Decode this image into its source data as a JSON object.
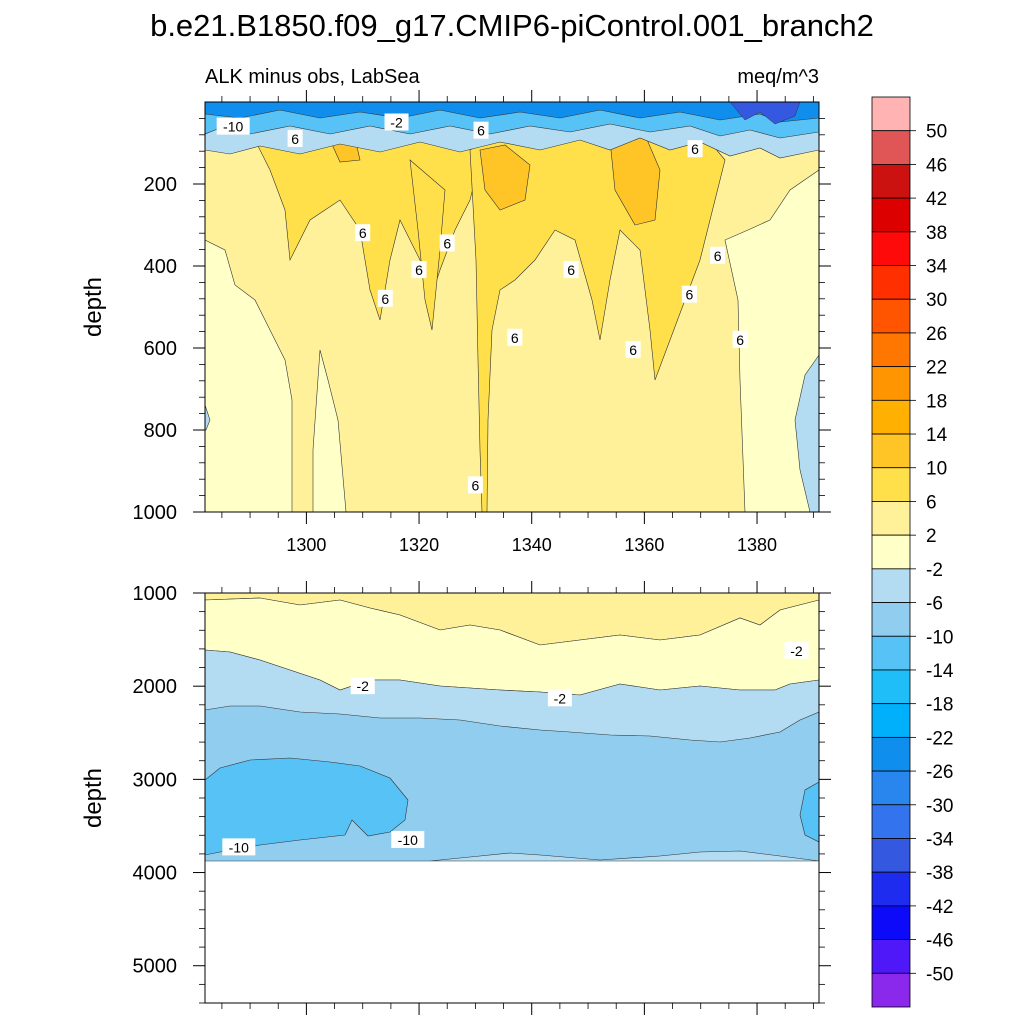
{
  "chart_data": {
    "type": "heatmap",
    "title": "b.e21.B1850.f09_g17.CMIP6-piControl.001_branch2",
    "subtitle_left": "ALK minus obs, LabSea",
    "subtitle_right": "meq/m^3",
    "variable": "ALK minus obs",
    "region": "LabSea",
    "units": "meq/m^3",
    "x_range": [
      1282,
      1391
    ],
    "x_ticks": [
      1300,
      1320,
      1340,
      1360,
      1380
    ],
    "x_tick_labels": [
      "1300",
      "1320",
      "1340",
      "1360",
      "1380"
    ],
    "panels": [
      {
        "name": "upper",
        "ylabel": "depth",
        "ylim": [
          1000,
          0
        ],
        "y_ticks": [
          200,
          400,
          600,
          800,
          1000
        ],
        "y_tick_labels": [
          "200",
          "400",
          "600",
          "800",
          "1000"
        ],
        "show_x_tick_labels": true,
        "contour_labels": [
          {
            "text": "-10",
            "x": 1287,
            "depth": 60
          },
          {
            "text": "-2",
            "x": 1316,
            "depth": 50
          },
          {
            "text": "6",
            "x": 1298,
            "depth": 90
          },
          {
            "text": "6",
            "x": 1331,
            "depth": 70
          },
          {
            "text": "6",
            "x": 1369,
            "depth": 115
          },
          {
            "text": "6",
            "x": 1310,
            "depth": 320
          },
          {
            "text": "6",
            "x": 1325,
            "depth": 345
          },
          {
            "text": "6",
            "x": 1320,
            "depth": 410
          },
          {
            "text": "6",
            "x": 1347,
            "depth": 410
          },
          {
            "text": "6",
            "x": 1373,
            "depth": 375
          },
          {
            "text": "6",
            "x": 1314,
            "depth": 480
          },
          {
            "text": "6",
            "x": 1368,
            "depth": 470
          },
          {
            "text": "6",
            "x": 1337,
            "depth": 575
          },
          {
            "text": "6",
            "x": 1358,
            "depth": 605
          },
          {
            "text": "6",
            "x": 1377,
            "depth": 580
          },
          {
            "text": "6",
            "x": 1330,
            "depth": 935
          }
        ]
      },
      {
        "name": "lower",
        "ylabel": "depth",
        "ylim": [
          5400,
          1000
        ],
        "y_ticks": [
          1000,
          2000,
          3000,
          4000,
          5000
        ],
        "y_tick_labels": [
          "1000",
          "2000",
          "3000",
          "4000",
          "5000"
        ],
        "show_x_tick_labels": false,
        "ocean_floor_depth": 3870,
        "contour_labels": [
          {
            "text": "-2",
            "x": 1310,
            "depth": 2000
          },
          {
            "text": "-2",
            "x": 1345,
            "depth": 2130
          },
          {
            "text": "-2",
            "x": 1387,
            "depth": 1620
          },
          {
            "text": "-10",
            "x": 1288,
            "depth": 3730
          },
          {
            "text": "-10",
            "x": 1318,
            "depth": 3650
          }
        ]
      }
    ],
    "colorbar": {
      "levels": [
        "50",
        "46",
        "42",
        "38",
        "34",
        "30",
        "26",
        "22",
        "18",
        "14",
        "10",
        "6",
        "2",
        "-2",
        "-6",
        "-10",
        "-14",
        "-18",
        "-22",
        "-26",
        "-30",
        "-34",
        "-38",
        "-42",
        "-46",
        "-50"
      ],
      "colors": [
        "#ffb3b3",
        "#e05555",
        "#cc1111",
        "#dd0000",
        "#ff0a0a",
        "#ff2f00",
        "#ff5500",
        "#ff7700",
        "#ff9500",
        "#ffb000",
        "#ffc526",
        "#ffe04a",
        "#fff199",
        "#ffffc8",
        "#b3dcf2",
        "#91cdee",
        "#56c2f5",
        "#1fbef8",
        "#00b0fb",
        "#108eee",
        "#2a86ef",
        "#3374ee",
        "#3458df",
        "#1e2cf0",
        "#0d0afa",
        "#4f18f8",
        "#8a28eb"
      ]
    }
  }
}
